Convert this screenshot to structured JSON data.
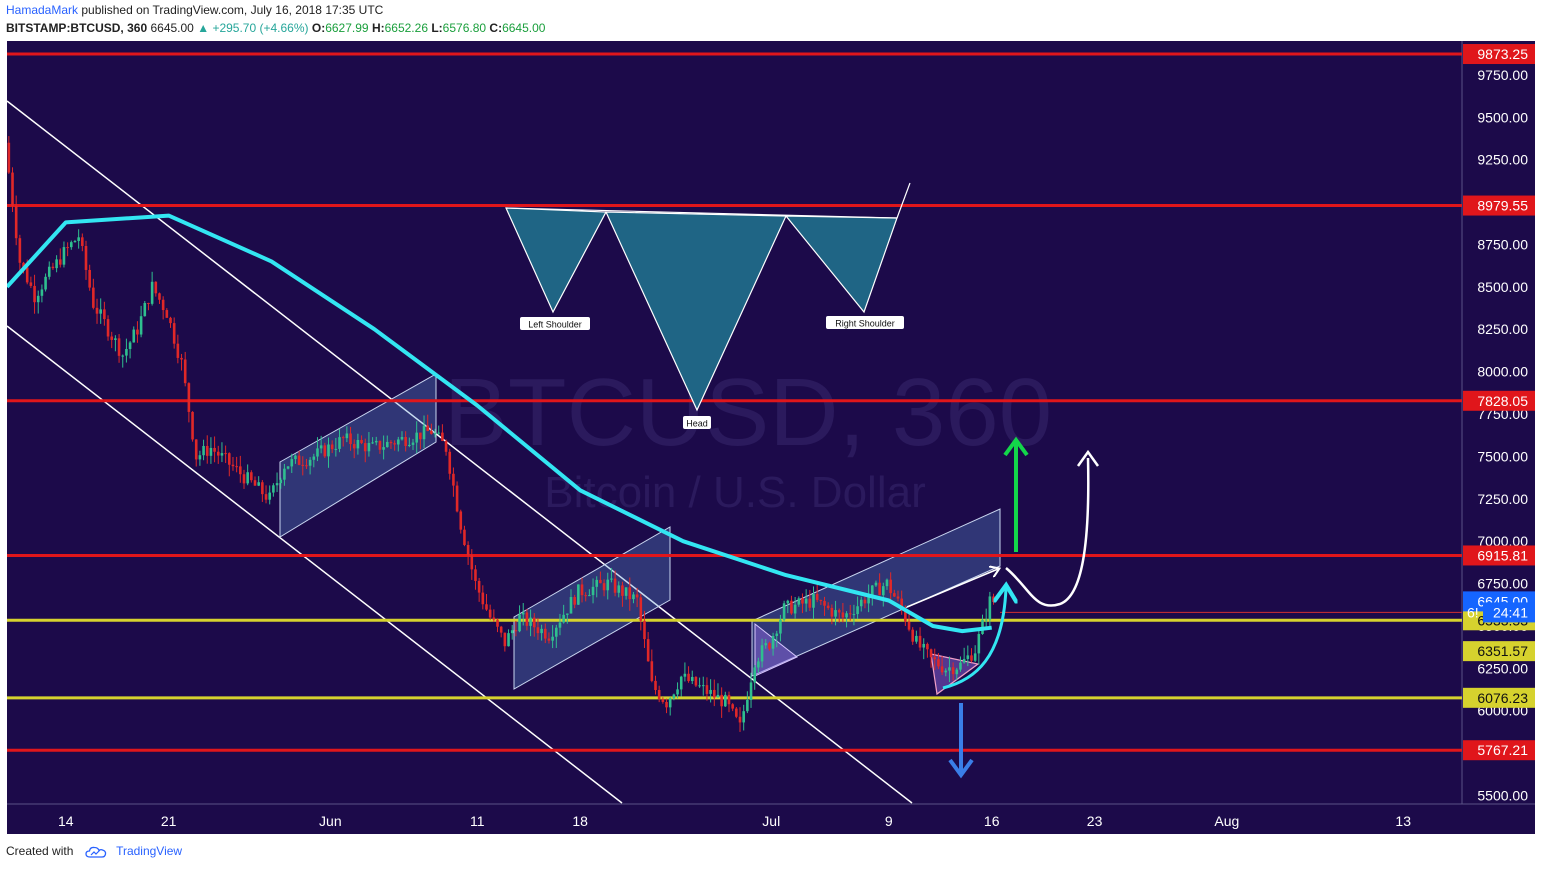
{
  "header": {
    "author": "HamadaMark",
    "published": "published on TradingView.com, July 16, 2018 17:35 UTC",
    "symbol": "BITSTAMP:BTCUSD, 360",
    "last": "6645.00",
    "change": "+295.70 (+4.66%)",
    "o_label": "O:",
    "o": "6627.99",
    "h_label": "H:",
    "h": "6652.26",
    "l_label": "L:",
    "l": "6576.80",
    "c_label": "C:",
    "c": "6645.00"
  },
  "watermark": {
    "title": "BTCUSD, 360",
    "subtitle": "Bitcoin / U.S. Dollar"
  },
  "footer": {
    "created_with": "Created with",
    "brand": "TradingView"
  },
  "colors": {
    "background": "#1c0a4a",
    "red_level": "#e0161b",
    "yellow_level": "#d6d22e",
    "ema": "#33e6f2",
    "bull": "#2fbf8f",
    "bear": "#e02828",
    "accent_green": "#13d64a",
    "arrow_blue": "#3a7ee8",
    "pattern_fill": "#1f6585"
  },
  "chart_data": {
    "type": "candlestick",
    "symbol": "BITSTAMP:BTCUSD",
    "interval": "360",
    "ylim": [
      5450,
      9950
    ],
    "y_ticks": [
      "5500.00",
      "5750.00",
      "6000.00",
      "6250.00",
      "6500.00",
      "6750.00",
      "7000.00",
      "7250.00",
      "7500.00",
      "7750.00",
      "8000.00",
      "8250.00",
      "8500.00",
      "8750.00",
      "9000.00",
      "9250.00",
      "9500.00",
      "9750.00"
    ],
    "x_ticks": [
      {
        "label": "14",
        "date": "2018-05-14"
      },
      {
        "label": "21",
        "date": "2018-05-21"
      },
      {
        "label": "Jun",
        "date": "2018-06-01"
      },
      {
        "label": "11",
        "date": "2018-06-11"
      },
      {
        "label": "18",
        "date": "2018-06-18"
      },
      {
        "label": "Jul",
        "date": "2018-07-01"
      },
      {
        "label": "9",
        "date": "2018-07-09"
      },
      {
        "label": "16",
        "date": "2018-07-16"
      },
      {
        "label": "23",
        "date": "2018-07-23"
      },
      {
        "label": "Aug",
        "date": "2018-08-01"
      },
      {
        "label": "13",
        "date": "2018-08-13"
      }
    ],
    "price_path": [
      [
        "2018-05-10",
        9350
      ],
      [
        "2018-05-11",
        8650
      ],
      [
        "2018-05-12",
        8450
      ],
      [
        "2018-05-14",
        8700
      ],
      [
        "2018-05-15",
        8800
      ],
      [
        "2018-05-16",
        8400
      ],
      [
        "2018-05-18",
        8100
      ],
      [
        "2018-05-19",
        8250
      ],
      [
        "2018-05-20",
        8500
      ],
      [
        "2018-05-21",
        8350
      ],
      [
        "2018-05-22",
        8050
      ],
      [
        "2018-05-23",
        7500
      ],
      [
        "2018-05-24",
        7550
      ],
      [
        "2018-05-26",
        7400
      ],
      [
        "2018-05-28",
        7250
      ],
      [
        "2018-05-29",
        7450
      ],
      [
        "2018-05-31",
        7500
      ],
      [
        "2018-06-02",
        7600
      ],
      [
        "2018-06-04",
        7550
      ],
      [
        "2018-06-06",
        7600
      ],
      [
        "2018-06-08",
        7650
      ],
      [
        "2018-06-09",
        7550
      ],
      [
        "2018-06-10",
        7100
      ],
      [
        "2018-06-11",
        6750
      ],
      [
        "2018-06-12",
        6550
      ],
      [
        "2018-06-13",
        6400
      ],
      [
        "2018-06-14",
        6550
      ],
      [
        "2018-06-16",
        6450
      ],
      [
        "2018-06-18",
        6700
      ],
      [
        "2018-06-20",
        6750
      ],
      [
        "2018-06-22",
        6650
      ],
      [
        "2018-06-23",
        6150
      ],
      [
        "2018-06-24",
        6050
      ],
      [
        "2018-06-25",
        6200
      ],
      [
        "2018-06-27",
        6100
      ],
      [
        "2018-06-28",
        6050
      ],
      [
        "2018-06-29",
        5900
      ],
      [
        "2018-06-30",
        6300
      ],
      [
        "2018-07-01",
        6400
      ],
      [
        "2018-07-02",
        6600
      ],
      [
        "2018-07-04",
        6650
      ],
      [
        "2018-07-06",
        6550
      ],
      [
        "2018-07-08",
        6700
      ],
      [
        "2018-07-09",
        6750
      ],
      [
        "2018-07-10",
        6600
      ],
      [
        "2018-07-11",
        6400
      ],
      [
        "2018-07-12",
        6300
      ],
      [
        "2018-07-13",
        6250
      ],
      [
        "2018-07-14",
        6270
      ],
      [
        "2018-07-15",
        6360
      ],
      [
        "2018-07-16",
        6645
      ]
    ],
    "ema": [
      [
        "2018-05-10",
        8500
      ],
      [
        "2018-05-14",
        8880
      ],
      [
        "2018-05-21",
        8920
      ],
      [
        "2018-05-28",
        8650
      ],
      [
        "2018-06-04",
        8250
      ],
      [
        "2018-06-11",
        7800
      ],
      [
        "2018-06-18",
        7300
      ],
      [
        "2018-06-25",
        7000
      ],
      [
        "2018-07-02",
        6800
      ],
      [
        "2018-07-09",
        6650
      ],
      [
        "2018-07-12",
        6500
      ],
      [
        "2018-07-14",
        6470
      ],
      [
        "2018-07-16",
        6490
      ]
    ],
    "horizontal_levels": [
      {
        "price": 9873.25,
        "label": "9873.25",
        "color": "red"
      },
      {
        "price": 8979.55,
        "label": "8979.55",
        "color": "red"
      },
      {
        "price": 7828.05,
        "label": "7828.05",
        "color": "red"
      },
      {
        "price": 6915.81,
        "label": "6915.81",
        "color": "red"
      },
      {
        "price": 6533.53,
        "label": "6533.53",
        "color": "yellow"
      },
      {
        "price": 6076.23,
        "label": "6076.23",
        "color": "yellow"
      },
      {
        "price": 5767.21,
        "label": "5767.21",
        "color": "red"
      }
    ],
    "axis_labels": [
      {
        "price": 6645.0,
        "label": "6645.00",
        "style": "current"
      },
      {
        "price": 6580,
        "label": "6!",
        "style": "partial"
      },
      {
        "price": 6580,
        "label": "24:41",
        "style": "countdown"
      },
      {
        "price": 6351.57,
        "label": "6351.57",
        "style": "yellow"
      }
    ],
    "pattern_labels": {
      "left": "Left Shoulder",
      "head": "Head",
      "right": "Right Shoulder"
    }
  }
}
